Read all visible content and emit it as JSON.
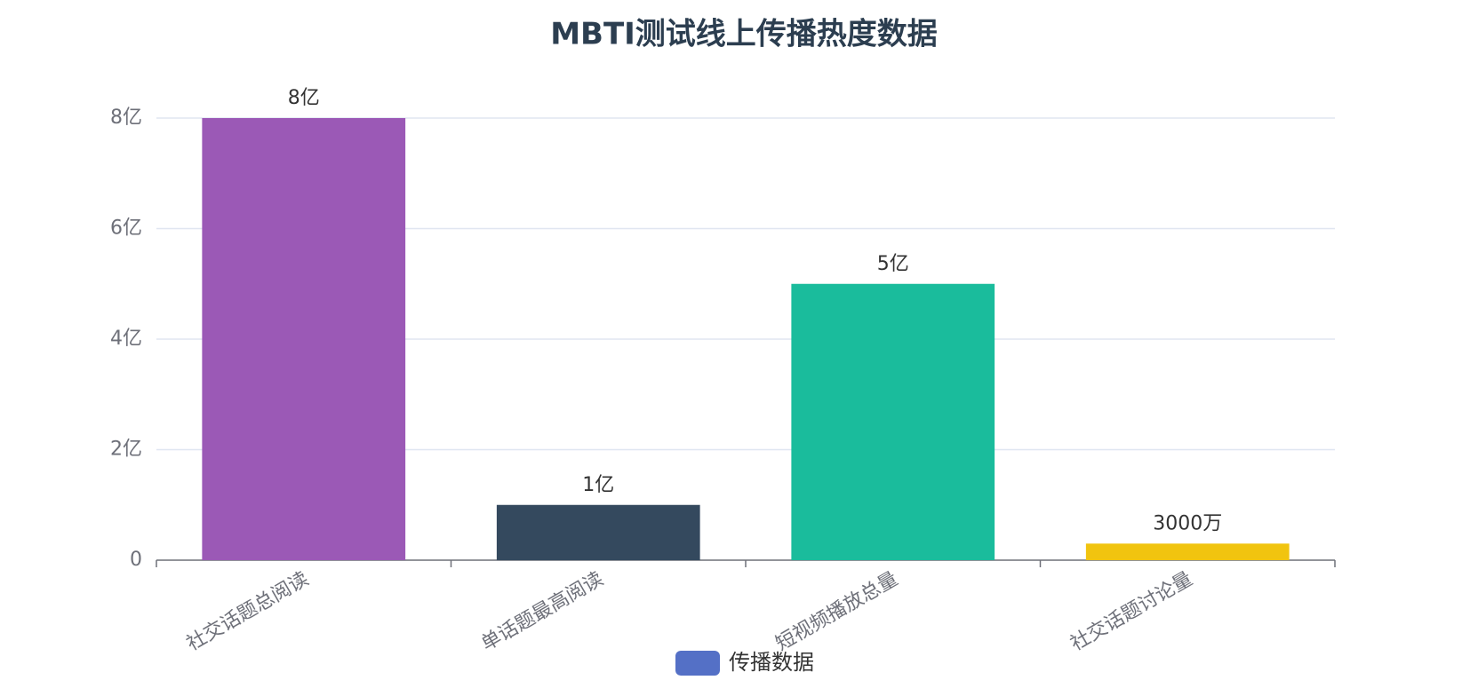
{
  "chart_data": {
    "type": "bar",
    "title": "MBTI测试线上传播热度数据",
    "categories": [
      "社交话题总阅读",
      "单话题最高阅读",
      "短视频播放总量",
      "社交话题讨论量"
    ],
    "series": [
      {
        "name": "传播数据",
        "color": "#5470c6",
        "values": [
          800000000,
          100000000,
          500000000,
          30000000
        ],
        "value_labels": [
          "8亿",
          "1亿",
          "5亿",
          "3000万"
        ],
        "colors": [
          "#9b59b6",
          "#34495e",
          "#1abc9c",
          "#f1c40f"
        ]
      }
    ],
    "ylim": [
      0,
      800000000
    ],
    "yticks": [
      0,
      {
        "value": 200000000,
        "label": "2亿"
      },
      {
        "value": 400000000,
        "label": "4亿"
      },
      {
        "value": 600000000,
        "label": "6亿"
      },
      {
        "value": 800000000,
        "label": "8亿"
      }
    ],
    "grid": true,
    "legend": "bottom"
  }
}
